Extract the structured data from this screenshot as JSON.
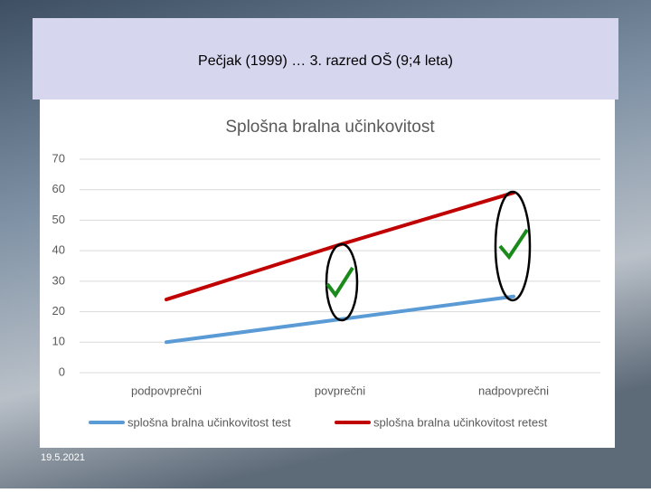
{
  "slide": {
    "title": "Pečjak (1999) … 3. razred OŠ (9;4 leta)",
    "date": "19.5.2021"
  },
  "chart_data": {
    "type": "line",
    "title": "Splošna bralna učinkovitost",
    "categories": [
      "podpovprečni",
      "povprečni",
      "nadpovprečni"
    ],
    "series": [
      {
        "name": "splošna bralna učinkovitost test",
        "color": "#5b9bd5",
        "values": [
          10,
          17.5,
          25
        ]
      },
      {
        "name": "splošna bralna učinkovitost retest",
        "color": "#c00000",
        "values": [
          24,
          42,
          59
        ]
      }
    ],
    "ylim": [
      0,
      70
    ],
    "yticks": [
      0,
      10,
      20,
      30,
      40,
      50,
      60,
      70
    ],
    "grid": true,
    "legend": "bottom"
  }
}
